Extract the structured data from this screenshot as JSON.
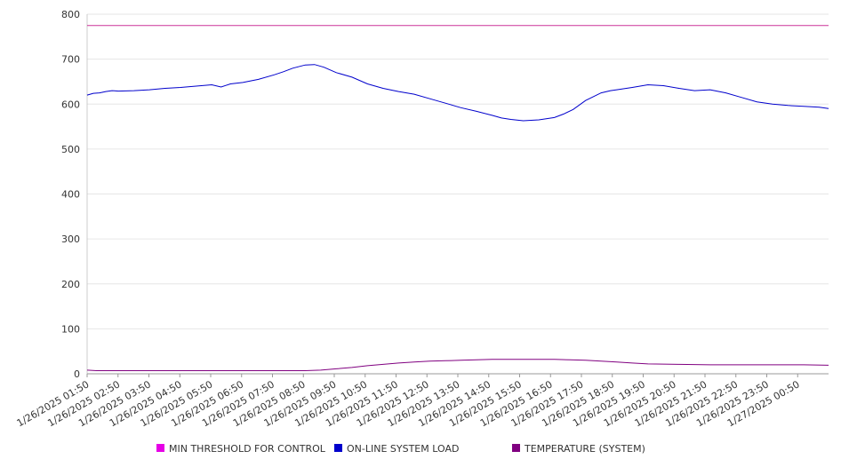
{
  "chart_data": {
    "type": "line",
    "ylim": [
      0,
      800
    ],
    "y_ticks": [
      0,
      100,
      200,
      300,
      400,
      500,
      600,
      700,
      800
    ],
    "grid": "horizontal",
    "legend_position": "bottom",
    "x_tick_labels": [
      "1/26/2025 01:50",
      "1/26/2025 02:50",
      "1/26/2025 03:50",
      "1/26/2025 04:50",
      "1/26/2025 05:50",
      "1/26/2025 06:50",
      "1/26/2025 07:50",
      "1/26/2025 08:50",
      "1/26/2025 09:50",
      "1/26/2025 10:50",
      "1/26/2025 11:50",
      "1/26/2025 12:50",
      "1/26/2025 13:50",
      "1/26/2025 14:50",
      "1/26/2025 15:50",
      "1/26/2025 16:50",
      "1/26/2025 17:50",
      "1/26/2025 18:50",
      "1/26/2025 19:50",
      "1/26/2025 20:50",
      "1/26/2025 21:50",
      "1/26/2025 22:50",
      "1/26/2025 23:50",
      "1/27/2025 00:50"
    ],
    "x_range_hours": [
      0,
      23.8
    ],
    "series": [
      {
        "name": "MIN THRESHOLD FOR CONTROL",
        "color": "#e600e6",
        "line_color": "#cc3399",
        "x": [
          0,
          23.8
        ],
        "y": [
          775,
          775
        ]
      },
      {
        "name": "ON-LINE SYSTEM LOAD",
        "color": "#0000cc",
        "x": [
          0,
          0.2,
          0.4,
          0.6,
          0.8,
          1.0,
          1.5,
          2.0,
          2.5,
          3.0,
          3.5,
          4.0,
          4.3,
          4.6,
          5.0,
          5.5,
          6.0,
          6.3,
          6.6,
          7.0,
          7.3,
          7.6,
          8.0,
          8.5,
          9.0,
          9.5,
          10.0,
          10.5,
          11.0,
          11.5,
          12.0,
          12.5,
          13.0,
          13.3,
          13.6,
          14.0,
          14.5,
          15.0,
          15.3,
          15.6,
          16.0,
          16.5,
          16.8,
          17.0,
          17.5,
          18.0,
          18.5,
          19.0,
          19.5,
          20.0,
          20.5,
          21.0,
          21.5,
          22.0,
          22.5,
          23.0,
          23.5,
          23.8
        ],
        "y": [
          620,
          624,
          625,
          628,
          630,
          629,
          630,
          632,
          635,
          637,
          640,
          643,
          638,
          645,
          648,
          655,
          665,
          672,
          680,
          687,
          688,
          682,
          670,
          660,
          645,
          635,
          628,
          622,
          612,
          602,
          592,
          584,
          575,
          569,
          566,
          563,
          565,
          570,
          578,
          588,
          608,
          625,
          630,
          632,
          637,
          643,
          641,
          635,
          630,
          632,
          625,
          615,
          605,
          600,
          597,
          595,
          593,
          590
        ]
      },
      {
        "name": "TEMPERATURE (SYSTEM)",
        "color": "#800080",
        "x": [
          0,
          0.3,
          1,
          2,
          3,
          4,
          5,
          6,
          6.5,
          7,
          7.5,
          8,
          8.5,
          9,
          9.5,
          10,
          10.5,
          11,
          11.5,
          12,
          12.5,
          13,
          13.5,
          14,
          14.5,
          15,
          15.5,
          16,
          16.5,
          17,
          17.5,
          18,
          19,
          20,
          21,
          22,
          23,
          23.8
        ],
        "y": [
          8,
          7,
          7,
          7,
          7,
          7,
          7,
          7,
          7,
          7,
          8,
          11,
          14,
          18,
          21,
          24,
          26,
          28,
          29,
          30,
          31,
          32,
          32,
          32,
          32,
          32,
          31,
          30,
          28,
          26,
          24,
          22,
          21,
          20,
          20,
          20,
          20,
          19
        ]
      }
    ]
  }
}
